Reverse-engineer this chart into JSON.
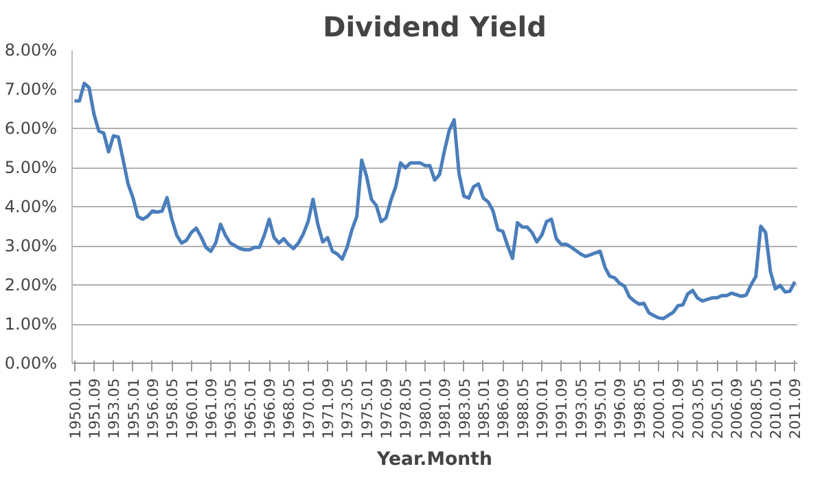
{
  "chart_data": {
    "type": "line",
    "title": "Dividend Yield",
    "xlabel": "Year.Month",
    "categories": [
      "1950.01",
      null,
      null,
      null,
      "1951.09",
      null,
      null,
      null,
      "1953.05",
      null,
      null,
      null,
      "1955.01",
      null,
      null,
      null,
      "1956.09",
      null,
      null,
      null,
      "1958.05",
      null,
      null,
      null,
      "1960.01",
      null,
      null,
      null,
      "1961.09",
      null,
      null,
      null,
      "1963.05",
      null,
      null,
      null,
      "1965.01",
      null,
      null,
      null,
      "1966.09",
      null,
      null,
      null,
      "1968.05",
      null,
      null,
      null,
      "1970.01",
      null,
      null,
      null,
      "1971.09",
      null,
      null,
      null,
      "1973.05",
      null,
      null,
      null,
      "1975.01",
      null,
      null,
      null,
      "1976.09",
      null,
      null,
      null,
      "1978.05",
      null,
      null,
      null,
      "1980.01",
      null,
      null,
      null,
      "1981.09",
      null,
      null,
      null,
      "1983.05",
      null,
      null,
      null,
      "1985.01",
      null,
      null,
      null,
      "1986.09",
      null,
      null,
      null,
      "1988.05",
      null,
      null,
      null,
      "1990.01",
      null,
      null,
      null,
      "1991.09",
      null,
      null,
      null,
      "1993.05",
      null,
      null,
      null,
      "1995.01",
      null,
      null,
      null,
      "1996.09",
      null,
      null,
      null,
      "1998.05",
      null,
      null,
      null,
      "2000.01",
      null,
      null,
      null,
      "2001.09",
      null,
      null,
      null,
      "2003.05",
      null,
      null,
      null,
      "2005.01",
      null,
      null,
      null,
      "2006.09",
      null,
      null,
      null,
      "2008.05",
      null,
      null,
      null,
      "2010.01",
      null,
      null,
      null,
      "2011.09"
    ],
    "series": [
      {
        "color": "#4a7ebb",
        "values": [
          6.7,
          6.7,
          7.15,
          7.04,
          6.36,
          5.93,
          5.88,
          5.4,
          5.81,
          5.78,
          5.19,
          4.58,
          4.23,
          3.75,
          3.68,
          3.75,
          3.89,
          3.86,
          3.89,
          4.23,
          3.68,
          3.27,
          3.07,
          3.14,
          3.34,
          3.45,
          3.23,
          2.96,
          2.86,
          3.07,
          3.55,
          3.27,
          3.07,
          3.0,
          2.93,
          2.9,
          2.9,
          2.96,
          2.96,
          3.27,
          3.68,
          3.21,
          3.07,
          3.18,
          3.03,
          2.93,
          3.07,
          3.3,
          3.62,
          4.19,
          3.55,
          3.1,
          3.21,
          2.86,
          2.79,
          2.66,
          2.96,
          3.41,
          3.75,
          5.19,
          4.78,
          4.19,
          4.03,
          3.62,
          3.71,
          4.16,
          4.51,
          5.12,
          4.99,
          5.12,
          5.12,
          5.12,
          5.05,
          5.05,
          4.68,
          4.82,
          5.42,
          5.95,
          6.22,
          4.85,
          4.27,
          4.22,
          4.51,
          4.58,
          4.22,
          4.12,
          3.89,
          3.41,
          3.37,
          3.0,
          2.68,
          3.59,
          3.48,
          3.48,
          3.34,
          3.1,
          3.27,
          3.62,
          3.68,
          3.18,
          3.04,
          3.04,
          2.97,
          2.88,
          2.79,
          2.73,
          2.77,
          2.82,
          2.86,
          2.45,
          2.22,
          2.18,
          2.04,
          1.97,
          1.7,
          1.59,
          1.51,
          1.53,
          1.29,
          1.22,
          1.16,
          1.14,
          1.22,
          1.3,
          1.47,
          1.49,
          1.77,
          1.86,
          1.67,
          1.59,
          1.63,
          1.67,
          1.67,
          1.73,
          1.73,
          1.79,
          1.75,
          1.71,
          1.74,
          2.0,
          2.22,
          3.5,
          3.34,
          2.34,
          1.9,
          1.99,
          1.82,
          1.84,
          2.08
        ]
      }
    ],
    "ylim": [
      0,
      8
    ],
    "yticks": [
      {
        "value": 0,
        "label": "0.00%"
      },
      {
        "value": 1,
        "label": "1.00%"
      },
      {
        "value": 2,
        "label": "2.00%"
      },
      {
        "value": 3,
        "label": "3.00%"
      },
      {
        "value": 4,
        "label": "4.00%"
      },
      {
        "value": 5,
        "label": "5.00%"
      },
      {
        "value": 6,
        "label": "6.00%"
      },
      {
        "value": 7,
        "label": "7.00%"
      },
      {
        "value": 8,
        "label": "8.00%"
      }
    ],
    "grid": "y",
    "line_style": "solid"
  }
}
